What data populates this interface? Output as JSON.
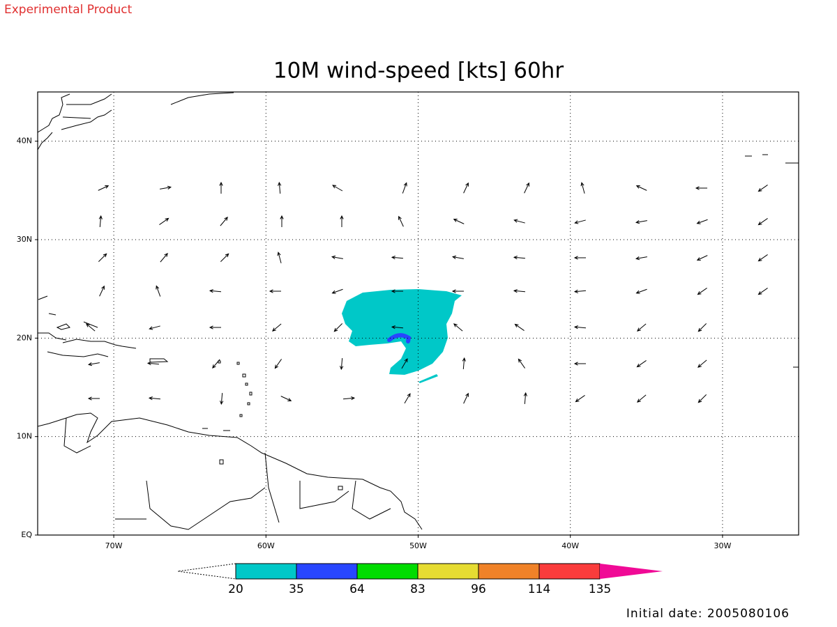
{
  "header": {
    "label": "Experimental Product"
  },
  "title": "10M wind-speed [kts] 60hr",
  "map": {
    "lonlim": [
      -75,
      -25
    ],
    "latlim": [
      0,
      45
    ],
    "grid": true,
    "lon_ticks": [
      {
        "value": -70,
        "label": "70W"
      },
      {
        "value": -60,
        "label": "60W"
      },
      {
        "value": -50,
        "label": "50W"
      },
      {
        "value": -40,
        "label": "40W"
      },
      {
        "value": -30,
        "label": "30W"
      }
    ],
    "lat_ticks": [
      {
        "value": 0,
        "label": "EQ"
      },
      {
        "value": 10,
        "label": "10N"
      },
      {
        "value": 20,
        "label": "20N"
      },
      {
        "value": 30,
        "label": "30N"
      },
      {
        "value": 40,
        "label": "40N"
      }
    ]
  },
  "colorbar": {
    "levels": [
      20,
      35,
      64,
      83,
      96,
      114,
      135
    ],
    "colors": [
      "#00c8c8",
      "#2846ff",
      "#00dc00",
      "#e6dc32",
      "#f08228",
      "#fa3c3c",
      "#f00a96"
    ]
  },
  "footer": {
    "initial_date": "Initial date: 2005080106"
  }
}
